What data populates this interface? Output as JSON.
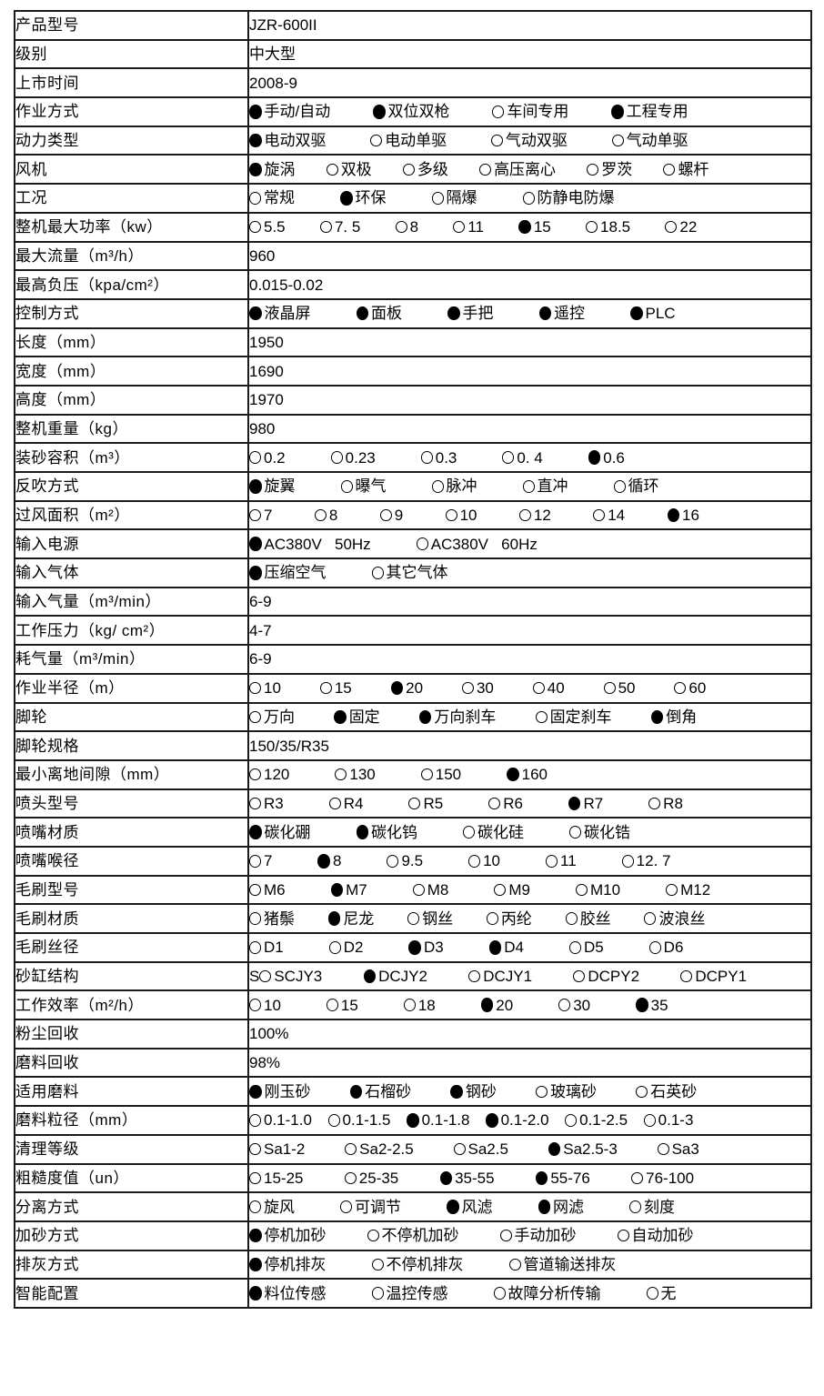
{
  "page": {
    "background": "#ffffff",
    "border_color": "#1b1b1b",
    "text_color": "#000000"
  },
  "spec_table": {
    "rows": [
      {
        "label": "产品型号",
        "type": "text",
        "value": "JZR-600II"
      },
      {
        "label": "级别",
        "type": "text",
        "value": "中大型"
      },
      {
        "label": "上市时间",
        "type": "text",
        "value": "2008-9"
      },
      {
        "label": "作业方式",
        "type": "options",
        "options": [
          {
            "text": "手动/自动",
            "filled": true
          },
          {
            "text": "双位双枪",
            "filled": true
          },
          {
            "text": "车间专用",
            "filled": false
          },
          {
            "text": "工程专用",
            "filled": true
          }
        ]
      },
      {
        "label": "动力类型",
        "type": "options",
        "options": [
          {
            "text": "电动双驱",
            "filled": true
          },
          {
            "text": "电动单驱",
            "filled": false
          },
          {
            "text": "气动双驱",
            "filled": false
          },
          {
            "text": "气动单驱",
            "filled": false
          }
        ]
      },
      {
        "label": "风机",
        "type": "options",
        "options": [
          {
            "text": "旋涡",
            "filled": true
          },
          {
            "text": "双极",
            "filled": false
          },
          {
            "text": "多级",
            "filled": false
          },
          {
            "text": "高压离心",
            "filled": false
          },
          {
            "text": "罗茨",
            "filled": false
          },
          {
            "text": "螺杆",
            "filled": false
          }
        ]
      },
      {
        "label": "工况",
        "type": "options",
        "options": [
          {
            "text": "常规",
            "filled": false
          },
          {
            "text": "环保",
            "filled": true
          },
          {
            "text": "隔爆",
            "filled": false
          },
          {
            "text": "防静电防爆",
            "filled": false
          }
        ]
      },
      {
        "label": "整机最大功率（kw）",
        "type": "options",
        "options": [
          {
            "text": "5.5",
            "filled": false
          },
          {
            "text": "7. 5",
            "filled": false
          },
          {
            "text": "8",
            "filled": false
          },
          {
            "text": "11",
            "filled": false
          },
          {
            "text": "15",
            "filled": true
          },
          {
            "text": "18.5",
            "filled": false
          },
          {
            "text": "22",
            "filled": false
          }
        ]
      },
      {
        "label": "最大流量（m³/h）",
        "type": "text",
        "value": "960"
      },
      {
        "label": "最高负压（kpa/cm²）",
        "type": "text",
        "value": "0.015-0.02"
      },
      {
        "label": "控制方式",
        "type": "options",
        "options": [
          {
            "text": "液晶屏",
            "filled": true
          },
          {
            "text": "面板",
            "filled": true
          },
          {
            "text": "手把",
            "filled": true
          },
          {
            "text": "遥控",
            "filled": true
          },
          {
            "text": "PLC",
            "filled": true
          }
        ]
      },
      {
        "label": "长度（mm）",
        "type": "text",
        "value": "1950"
      },
      {
        "label": "宽度（mm）",
        "type": "text",
        "value": "1690"
      },
      {
        "label": "高度（mm）",
        "type": "text",
        "value": "1970"
      },
      {
        "label": "整机重量（kg）",
        "type": "text",
        "value": "980"
      },
      {
        "label": "装砂容积（m³）",
        "type": "options",
        "options": [
          {
            "text": "0.2",
            "filled": false
          },
          {
            "text": "0.23",
            "filled": false
          },
          {
            "text": "0.3",
            "filled": false
          },
          {
            "text": "0. 4",
            "filled": false
          },
          {
            "text": "0.6",
            "filled": true
          }
        ]
      },
      {
        "label": "反吹方式",
        "type": "options",
        "options": [
          {
            "text": "旋翼",
            "filled": true
          },
          {
            "text": "曝气",
            "filled": false
          },
          {
            "text": "脉冲",
            "filled": false
          },
          {
            "text": "直冲",
            "filled": false
          },
          {
            "text": "循环",
            "filled": false
          }
        ]
      },
      {
        "label": "过风面积（m²）",
        "type": "options",
        "options": [
          {
            "text": "7",
            "filled": false
          },
          {
            "text": "8",
            "filled": false
          },
          {
            "text": "9",
            "filled": false
          },
          {
            "text": "10",
            "filled": false
          },
          {
            "text": "12",
            "filled": false
          },
          {
            "text": "14",
            "filled": false
          },
          {
            "text": "16",
            "filled": true
          }
        ]
      },
      {
        "label": "输入电源",
        "type": "options",
        "options": [
          {
            "text": "AC380V   50Hz",
            "filled": true
          },
          {
            "text": "AC380V   60Hz",
            "filled": false
          }
        ]
      },
      {
        "label": "输入气体",
        "type": "options",
        "options": [
          {
            "text": "压缩空气",
            "filled": true
          },
          {
            "text": "其它气体",
            "filled": false
          }
        ]
      },
      {
        "label": "输入气量（m³/min）",
        "type": "text",
        "value": "6-9"
      },
      {
        "label": "工作压力（kg/ cm²）",
        "type": "text",
        "value": "4-7"
      },
      {
        "label": "耗气量（m³/min）",
        "type": "text",
        "value": "6-9"
      },
      {
        "label": "作业半径（m）",
        "type": "options",
        "options": [
          {
            "text": "10",
            "filled": false
          },
          {
            "text": "15",
            "filled": false
          },
          {
            "text": "20",
            "filled": true
          },
          {
            "text": "30",
            "filled": false
          },
          {
            "text": "40",
            "filled": false
          },
          {
            "text": "50",
            "filled": false
          },
          {
            "text": "60",
            "filled": false
          }
        ]
      },
      {
        "label": "脚轮",
        "type": "options",
        "options": [
          {
            "text": "万向",
            "filled": false
          },
          {
            "text": "固定",
            "filled": true
          },
          {
            "text": "万向刹车",
            "filled": true
          },
          {
            "text": "固定刹车",
            "filled": false
          },
          {
            "text": "倒角",
            "filled": true
          }
        ]
      },
      {
        "label": "脚轮规格",
        "type": "text",
        "value": "150/35/R35"
      },
      {
        "label": "最小离地间隙（mm）",
        "type": "options",
        "options": [
          {
            "text": "120",
            "filled": false
          },
          {
            "text": "130",
            "filled": false
          },
          {
            "text": "150",
            "filled": false
          },
          {
            "text": "160",
            "filled": true
          }
        ]
      },
      {
        "label": "喷头型号",
        "type": "options",
        "options": [
          {
            "text": "R3",
            "filled": false
          },
          {
            "text": "R4",
            "filled": false
          },
          {
            "text": "R5",
            "filled": false
          },
          {
            "text": "R6",
            "filled": false
          },
          {
            "text": "R7",
            "filled": true
          },
          {
            "text": "R8",
            "filled": false
          }
        ]
      },
      {
        "label": "喷嘴材质",
        "type": "options",
        "options": [
          {
            "text": "碳化硼",
            "filled": true
          },
          {
            "text": "碳化钨",
            "filled": true
          },
          {
            "text": "碳化硅",
            "filled": false
          },
          {
            "text": "碳化锆",
            "filled": false
          }
        ]
      },
      {
        "label": "喷嘴喉径",
        "type": "options",
        "options": [
          {
            "text": "7",
            "filled": false
          },
          {
            "text": "8",
            "filled": true
          },
          {
            "text": "9.5",
            "filled": false
          },
          {
            "text": "10",
            "filled": false
          },
          {
            "text": "11",
            "filled": false
          },
          {
            "text": "12. 7",
            "filled": false
          }
        ]
      },
      {
        "label": "毛刷型号",
        "type": "options",
        "options": [
          {
            "text": "M6",
            "filled": false
          },
          {
            "text": "M7",
            "filled": true
          },
          {
            "text": "M8",
            "filled": false
          },
          {
            "text": "M9",
            "filled": false
          },
          {
            "text": "M10",
            "filled": false
          },
          {
            "text": "M12",
            "filled": false
          }
        ]
      },
      {
        "label": "毛刷材质",
        "type": "options",
        "options": [
          {
            "text": "猪鬃",
            "filled": false
          },
          {
            "text": "尼龙",
            "filled": true
          },
          {
            "text": "钢丝",
            "filled": false
          },
          {
            "text": "丙纶",
            "filled": false
          },
          {
            "text": "胶丝",
            "filled": false
          },
          {
            "text": "波浪丝",
            "filled": false
          }
        ]
      },
      {
        "label": "毛刷丝径",
        "type": "options",
        "options": [
          {
            "text": "D1",
            "filled": false
          },
          {
            "text": "D2",
            "filled": false
          },
          {
            "text": "D3",
            "filled": true
          },
          {
            "text": "D4",
            "filled": true
          },
          {
            "text": "D5",
            "filled": false
          },
          {
            "text": "D6",
            "filled": false
          }
        ]
      },
      {
        "label": "砂缸结构",
        "type": "options",
        "prefix": "S",
        "options": [
          {
            "text": "SCJY3",
            "filled": false
          },
          {
            "text": "DCJY2",
            "filled": true
          },
          {
            "text": "DCJY1",
            "filled": false
          },
          {
            "text": "DCPY2",
            "filled": false
          },
          {
            "text": "DCPY1",
            "filled": false
          }
        ]
      },
      {
        "label": "工作效率（m²/h）",
        "type": "options",
        "options": [
          {
            "text": "10",
            "filled": false
          },
          {
            "text": "15",
            "filled": false
          },
          {
            "text": "18",
            "filled": false
          },
          {
            "text": "20",
            "filled": true
          },
          {
            "text": "30",
            "filled": false
          },
          {
            "text": "35",
            "filled": true
          }
        ]
      },
      {
        "label": "粉尘回收",
        "type": "text",
        "value": "100%"
      },
      {
        "label": "磨料回收",
        "type": "text",
        "value": "98%"
      },
      {
        "label": "适用磨料",
        "type": "options",
        "options": [
          {
            "text": "刚玉砂",
            "filled": true
          },
          {
            "text": "石榴砂",
            "filled": true
          },
          {
            "text": "钢砂",
            "filled": true
          },
          {
            "text": "玻璃砂",
            "filled": false
          },
          {
            "text": "石英砂",
            "filled": false
          }
        ]
      },
      {
        "label": "磨料粒径（mm）",
        "type": "options",
        "options": [
          {
            "text": "0.1-1.0",
            "filled": false
          },
          {
            "text": "0.1-1.5",
            "filled": false
          },
          {
            "text": "0.1-1.8",
            "filled": true
          },
          {
            "text": "0.1-2.0",
            "filled": true
          },
          {
            "text": "0.1-2.5",
            "filled": false
          },
          {
            "text": "0.1-3",
            "filled": false
          }
        ]
      },
      {
        "label": "清理等级",
        "type": "options",
        "options": [
          {
            "text": "Sa1-2",
            "filled": false
          },
          {
            "text": "Sa2-2.5",
            "filled": false
          },
          {
            "text": "Sa2.5",
            "filled": false
          },
          {
            "text": "Sa2.5-3",
            "filled": true
          },
          {
            "text": "Sa3",
            "filled": false
          }
        ]
      },
      {
        "label": "粗糙度值（un）",
        "type": "options",
        "options": [
          {
            "text": "15-25",
            "filled": false
          },
          {
            "text": "25-35",
            "filled": false
          },
          {
            "text": "35-55",
            "filled": true
          },
          {
            "text": "55-76",
            "filled": true
          },
          {
            "text": "76-100",
            "filled": false
          }
        ]
      },
      {
        "label": "分离方式",
        "type": "options",
        "options": [
          {
            "text": "旋风",
            "filled": false
          },
          {
            "text": "可调节",
            "filled": false
          },
          {
            "text": "风滤",
            "filled": true
          },
          {
            "text": "网滤",
            "filled": true
          },
          {
            "text": "刻度",
            "filled": false
          }
        ]
      },
      {
        "label": "加砂方式",
        "type": "options",
        "options": [
          {
            "text": "停机加砂",
            "filled": true
          },
          {
            "text": "不停机加砂",
            "filled": false
          },
          {
            "text": "手动加砂",
            "filled": false
          },
          {
            "text": "自动加砂",
            "filled": false
          }
        ]
      },
      {
        "label": "排灰方式",
        "type": "options",
        "options": [
          {
            "text": "停机排灰",
            "filled": true
          },
          {
            "text": "不停机排灰",
            "filled": false
          },
          {
            "text": "管道输送排灰",
            "filled": false
          }
        ]
      },
      {
        "label": "智能配置",
        "type": "options",
        "options": [
          {
            "text": "料位传感",
            "filled": true
          },
          {
            "text": "温控传感",
            "filled": false
          },
          {
            "text": "故障分析传输",
            "filled": false
          },
          {
            "text": "无",
            "filled": false
          }
        ]
      }
    ]
  }
}
